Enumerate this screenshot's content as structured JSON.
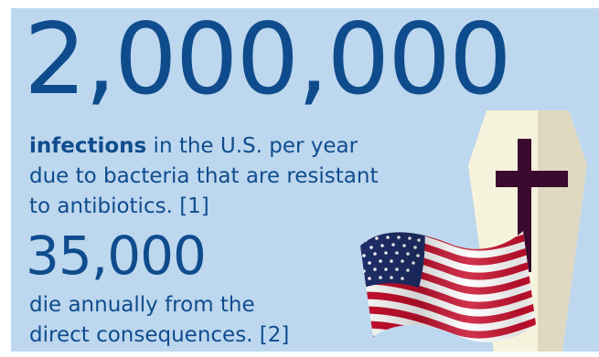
{
  "headline": {
    "number": "2,000,000"
  },
  "infections": {
    "bold_word": "infections",
    "line1_rest": " in the U.S. per year",
    "line2": "due to bacteria that are resistant",
    "line3": "to antibiotics. [1]"
  },
  "deaths": {
    "number": "35,000",
    "line1": "die annually from the",
    "line2": "direct consequences. [2]"
  },
  "icons": {
    "coffin": "coffin-icon",
    "cross": "cross-icon",
    "flag": "us-flag-icon"
  },
  "colors": {
    "background": "#bdd7ee",
    "text": "#0f4c8d",
    "coffin_light": "#f6f3dc",
    "coffin_shade": "#dfd9c2",
    "cross": "#3a0b2e",
    "flag_red": "#c8102e",
    "flag_blue": "#1f2f6b"
  }
}
